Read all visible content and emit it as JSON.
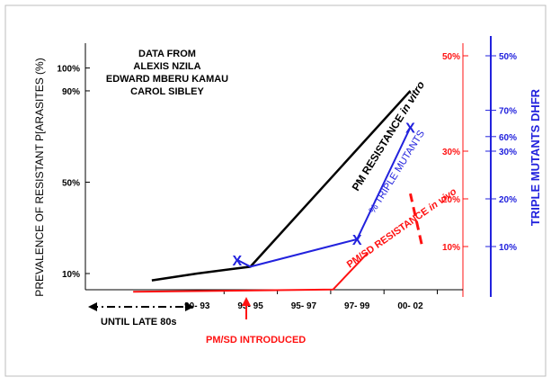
{
  "chart_data": {
    "type": "line",
    "annotation_lines": [
      "DATA FROM",
      "ALEXIS NZILA",
      "EDWARD MBERU KAMAU",
      "CAROL SIBLEY"
    ],
    "ylabel_left": "PREVALENCE OF RESISTANT P[ARASITES (%)",
    "ylabel_right": "TRIPLE MUTANTS DHFR",
    "left_ticks": [
      {
        "label": "100%",
        "value": 100
      },
      {
        "label": "90%",
        "value": 90
      },
      {
        "label": "50%",
        "value": 50
      },
      {
        "label": "10%",
        "value": 10
      }
    ],
    "red_axis_ticks": [
      {
        "label": "50%",
        "value": 50
      },
      {
        "label": "30%",
        "value": 30
      },
      {
        "label": "20%",
        "value": 20
      },
      {
        "label": "10%",
        "value": 10
      }
    ],
    "blue_axis_ticks": [
      {
        "label": "70%",
        "value": 70
      },
      {
        "label": "60%",
        "value": 60
      },
      {
        "label": "50%",
        "value": 50
      },
      {
        "label": "30%",
        "value": 30
      },
      {
        "label": "20%",
        "value": 20
      },
      {
        "label": "10%",
        "value": 10
      }
    ],
    "categories": [
      "UNTIL LATE 80s",
      "90- 93",
      "93- 95",
      "95- 97",
      "97- 99",
      "00- 02"
    ],
    "series": [
      {
        "name": "PM RESISTANCE in vitro",
        "label_main": "PM RESISTANCE",
        "label_italic": "in vitro",
        "color": "#000000",
        "points": [
          {
            "x": 0.15,
            "y": 7
          },
          {
            "x": 1,
            "y": 10
          },
          {
            "x": 2,
            "y": 13
          },
          {
            "x": 5,
            "y": 90
          }
        ]
      },
      {
        "name": "% TRIPLE MUTANTS",
        "label_main": "% TRIPLE MUTANTS",
        "color": "#2222dd",
        "points": [
          {
            "x": 1.75,
            "y": 16
          },
          {
            "x": 2,
            "y": 13
          },
          {
            "x": 4,
            "y": 25
          },
          {
            "x": 5,
            "y": 74
          }
        ],
        "markers": [
          {
            "x": 1.75,
            "y": 16
          },
          {
            "x": 4,
            "y": 25
          },
          {
            "x": 5,
            "y": 74
          }
        ],
        "marker_label": "X"
      },
      {
        "name": "PM/SD RESISTANCE in vivo",
        "label_main": "PM/SD RESISTANCE",
        "label_italic": "in vivo",
        "color": "#ff1111",
        "points": [
          {
            "x": -0.2,
            "y": 2
          },
          {
            "x": 3.55,
            "y": 3
          },
          {
            "x": 4.2,
            "y": 19
          },
          {
            "x": 5,
            "y": 45
          }
        ]
      }
    ],
    "timeline_label": "UNTIL LATE 80s",
    "introduced_label": "PM/SD INTRODUCED",
    "ylim_left": [
      0,
      100
    ]
  },
  "colors": {
    "black": "#000000",
    "blue": "#2222dd",
    "red": "#ff1111",
    "border": "#bdbdbd"
  }
}
